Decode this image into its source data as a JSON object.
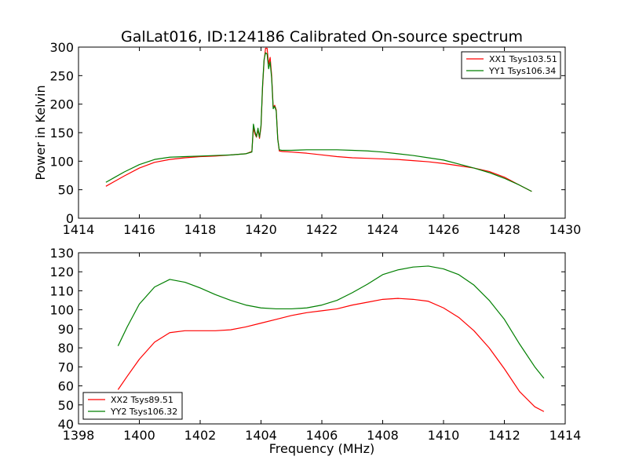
{
  "figure": {
    "title": "GalLat016, ID:124186 Calibrated On-source spectrum",
    "xlabel": "Frequency (MHz)"
  },
  "colors": {
    "red": "#ff0000",
    "green": "#007f00"
  },
  "chart_data": [
    {
      "type": "line",
      "title": "GalLat016, ID:124186 Calibrated On-source spectrum",
      "xlabel": "",
      "ylabel": "Power in Kelvin",
      "xlim": [
        1414,
        1430
      ],
      "ylim": [
        0,
        300
      ],
      "xticks": [
        1414,
        1416,
        1418,
        1420,
        1422,
        1424,
        1426,
        1428,
        1430
      ],
      "yticks": [
        0,
        50,
        100,
        150,
        200,
        250,
        300
      ],
      "legend_position": "top-right",
      "grid": false,
      "series": [
        {
          "name": "XX1 Tsys103.51",
          "color": "#ff0000",
          "x": [
            1414.9,
            1415.2,
            1415.5,
            1416.0,
            1416.5,
            1417.0,
            1417.5,
            1418.0,
            1418.5,
            1419.0,
            1419.5,
            1419.7,
            1419.75,
            1419.8,
            1419.85,
            1419.9,
            1419.95,
            1420.0,
            1420.05,
            1420.1,
            1420.15,
            1420.2,
            1420.25,
            1420.3,
            1420.35,
            1420.4,
            1420.45,
            1420.5,
            1420.55,
            1420.6,
            1420.7,
            1421.0,
            1421.5,
            1422.0,
            1422.5,
            1423.0,
            1423.5,
            1424.0,
            1424.5,
            1425.0,
            1425.5,
            1426.0,
            1426.5,
            1427.0,
            1427.5,
            1428.0,
            1428.5,
            1428.9
          ],
          "y": [
            56,
            65,
            74,
            88,
            98,
            103,
            106,
            108,
            109,
            111,
            113,
            117,
            158,
            148,
            142,
            155,
            140,
            160,
            228,
            275,
            298,
            298,
            270,
            282,
            250,
            195,
            198,
            190,
            140,
            118,
            117,
            116,
            114,
            111,
            108,
            106,
            105,
            104,
            103,
            101,
            99,
            96,
            92,
            88,
            82,
            72,
            58,
            47
          ]
        },
        {
          "name": "YY1 Tsys106.34",
          "color": "#007f00",
          "x": [
            1414.9,
            1415.2,
            1415.5,
            1416.0,
            1416.5,
            1417.0,
            1417.5,
            1418.0,
            1418.5,
            1419.0,
            1419.5,
            1419.7,
            1419.75,
            1419.8,
            1419.85,
            1419.9,
            1419.95,
            1420.0,
            1420.05,
            1420.1,
            1420.15,
            1420.2,
            1420.25,
            1420.3,
            1420.35,
            1420.4,
            1420.45,
            1420.5,
            1420.55,
            1420.6,
            1420.7,
            1421.0,
            1421.5,
            1422.0,
            1422.5,
            1423.0,
            1423.5,
            1424.0,
            1424.5,
            1425.0,
            1425.5,
            1426.0,
            1426.5,
            1427.0,
            1427.5,
            1428.0,
            1428.5,
            1428.9
          ],
          "y": [
            63,
            72,
            81,
            94,
            103,
            107,
            108,
            109,
            110,
            111,
            113,
            116,
            165,
            152,
            143,
            158,
            142,
            163,
            232,
            278,
            290,
            288,
            262,
            274,
            245,
            192,
            196,
            188,
            138,
            120,
            119,
            119,
            120,
            120,
            120,
            119,
            118,
            116,
            113,
            110,
            106,
            102,
            95,
            88,
            80,
            70,
            58,
            47
          ]
        }
      ]
    },
    {
      "type": "line",
      "xlabel": "Frequency (MHz)",
      "ylabel": "",
      "xlim": [
        1398,
        1414
      ],
      "ylim": [
        40,
        130
      ],
      "xticks": [
        1398,
        1400,
        1402,
        1404,
        1406,
        1408,
        1410,
        1412,
        1414
      ],
      "yticks": [
        40,
        50,
        60,
        70,
        80,
        90,
        100,
        110,
        120,
        130
      ],
      "legend_position": "bottom-left",
      "grid": false,
      "series": [
        {
          "name": "XX2 Tsys89.51",
          "color": "#ff0000",
          "x": [
            1399.3,
            1399.6,
            1400.0,
            1400.5,
            1401.0,
            1401.5,
            1402.0,
            1402.5,
            1403.0,
            1403.5,
            1404.0,
            1404.5,
            1405.0,
            1405.5,
            1406.0,
            1406.5,
            1407.0,
            1407.5,
            1408.0,
            1408.5,
            1409.0,
            1409.5,
            1410.0,
            1410.5,
            1411.0,
            1411.5,
            1412.0,
            1412.5,
            1413.0,
            1413.3
          ],
          "y": [
            58,
            65,
            74,
            83,
            88,
            89,
            89,
            89,
            89.5,
            91,
            93,
            95,
            97,
            98.5,
            99.5,
            100.5,
            102.5,
            104,
            105.5,
            106,
            105.5,
            104.5,
            101,
            96,
            89,
            80,
            69,
            57,
            49,
            46.5
          ]
        },
        {
          "name": "YY2 Tsys106.32",
          "color": "#007f00",
          "x": [
            1399.3,
            1399.6,
            1400.0,
            1400.5,
            1401.0,
            1401.5,
            1402.0,
            1402.5,
            1403.0,
            1403.5,
            1404.0,
            1404.5,
            1405.0,
            1405.5,
            1406.0,
            1406.5,
            1407.0,
            1407.5,
            1408.0,
            1408.5,
            1409.0,
            1409.5,
            1410.0,
            1410.5,
            1411.0,
            1411.5,
            1412.0,
            1412.5,
            1413.0,
            1413.3
          ],
          "y": [
            81,
            91,
            103,
            112,
            116,
            114.5,
            111.5,
            108,
            105,
            102.5,
            101,
            100.5,
            100.5,
            101,
            102.5,
            105,
            109,
            113.5,
            118.5,
            121,
            122.5,
            123,
            121.5,
            118.5,
            113,
            105,
            95,
            82,
            70,
            64
          ]
        }
      ]
    }
  ]
}
